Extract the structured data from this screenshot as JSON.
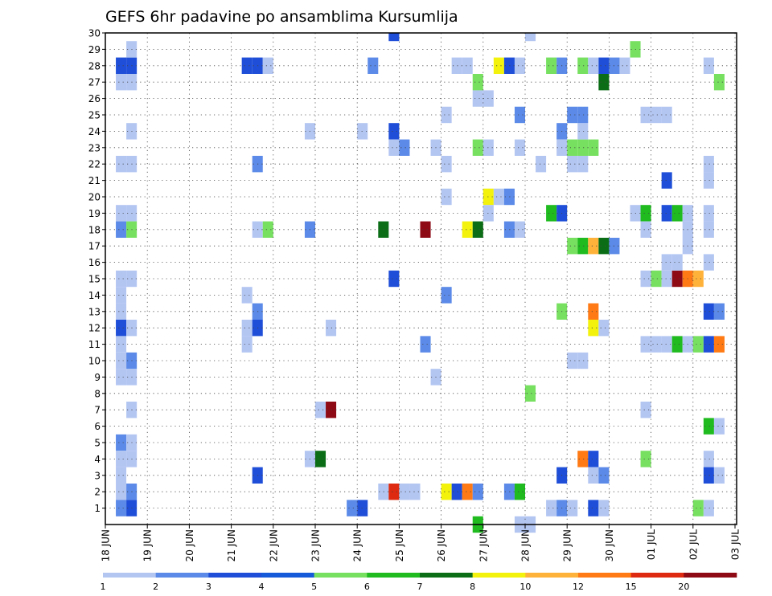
{
  "chart_data": {
    "type": "heatmap",
    "title": "GEFS 6hr padavine po ansamblima Kursumlija",
    "xlabel": "",
    "ylabel": "",
    "x_tick_labels": [
      "18 JUN",
      "19 JUN",
      "20 JUN",
      "21 JUN",
      "22 JUN",
      "23 JUN",
      "24 JUN",
      "25 JUN",
      "26 JUN",
      "27 JUN",
      "28 JUN",
      "29 JUN",
      "30 JUN",
      "01 JUL",
      "02 JUL",
      "03 JUL"
    ],
    "y_tick_labels": [
      "1",
      "2",
      "3",
      "4",
      "5",
      "6",
      "7",
      "8",
      "9",
      "10",
      "11",
      "12",
      "13",
      "14",
      "15",
      "16",
      "17",
      "18",
      "19",
      "20",
      "21",
      "22",
      "23",
      "24",
      "25",
      "26",
      "27",
      "28",
      "29",
      "30"
    ],
    "y_range": [
      0,
      30
    ],
    "x_units": "days since 18 JUN (6-hourly steps)",
    "x_range": [
      0,
      15.1
    ],
    "grid": true,
    "legend_placement": "bottom",
    "colorbar": {
      "boundaries": [
        "1",
        "2",
        "3",
        "4",
        "5",
        "6",
        "7",
        "8",
        "10",
        "12",
        "15",
        "20"
      ],
      "colors": [
        "#b3c6f2",
        "#5b8ae8",
        "#1f4fd8",
        "#155ad8",
        "#77e060",
        "#1fbb1f",
        "#0b6e16",
        "#f2f20d",
        "#ffb23a",
        "#ff7a14",
        "#dd2a10",
        "#8e0a14"
      ]
    },
    "cells": [
      [
        0.25,
        28,
        2
      ],
      [
        0.5,
        28,
        2
      ],
      [
        0.25,
        27,
        0
      ],
      [
        0.5,
        27,
        0
      ],
      [
        0.5,
        29,
        0
      ],
      [
        0.5,
        24,
        0
      ],
      [
        0.25,
        22,
        0
      ],
      [
        0.5,
        22,
        0
      ],
      [
        0.25,
        19,
        0
      ],
      [
        0.5,
        19,
        0
      ],
      [
        0.25,
        18,
        1
      ],
      [
        0.5,
        18,
        4
      ],
      [
        0.25,
        15,
        0
      ],
      [
        0.5,
        15,
        0
      ],
      [
        0.25,
        14,
        0
      ],
      [
        0.25,
        13,
        0
      ],
      [
        0.25,
        12,
        2
      ],
      [
        0.5,
        12,
        0
      ],
      [
        0.25,
        10,
        0
      ],
      [
        0.5,
        10,
        1
      ],
      [
        0.25,
        11,
        0
      ],
      [
        0.25,
        9,
        0
      ],
      [
        0.5,
        9,
        0
      ],
      [
        0.5,
        7,
        0
      ],
      [
        0.25,
        5,
        1
      ],
      [
        0.5,
        5,
        0
      ],
      [
        0.25,
        4,
        0
      ],
      [
        0.5,
        4,
        0
      ],
      [
        0.25,
        3,
        0
      ],
      [
        0.25,
        2,
        0
      ],
      [
        0.5,
        2,
        1
      ],
      [
        0.25,
        1,
        1
      ],
      [
        0.5,
        1,
        2
      ],
      [
        3.25,
        28,
        2
      ],
      [
        3.5,
        28,
        2
      ],
      [
        3.75,
        28,
        0
      ],
      [
        3.25,
        14,
        0
      ],
      [
        3.25,
        12,
        0
      ],
      [
        3.25,
        11,
        0
      ],
      [
        3.5,
        13,
        1
      ],
      [
        3.5,
        12,
        2
      ],
      [
        3.5,
        22,
        1
      ],
      [
        3.5,
        18,
        0
      ],
      [
        3.75,
        18,
        4
      ],
      [
        3.5,
        3,
        2
      ],
      [
        4.75,
        24,
        0
      ],
      [
        4.75,
        18,
        1
      ],
      [
        4.75,
        4,
        0
      ],
      [
        5,
        4,
        6
      ],
      [
        5,
        7,
        0
      ],
      [
        5.25,
        7,
        11
      ],
      [
        5.25,
        12,
        0
      ],
      [
        5.75,
        1,
        1
      ],
      [
        6,
        1,
        2
      ],
      [
        6,
        24,
        0
      ],
      [
        6.25,
        28,
        1
      ],
      [
        6.5,
        18,
        6
      ],
      [
        6.75,
        30,
        2
      ],
      [
        6.75,
        24,
        2
      ],
      [
        6.75,
        23,
        0
      ],
      [
        7,
        23,
        1
      ],
      [
        6.75,
        15,
        2
      ],
      [
        6.5,
        2,
        0
      ],
      [
        6.75,
        2,
        10
      ],
      [
        7,
        2,
        0
      ],
      [
        7.25,
        2,
        0
      ],
      [
        7.5,
        11,
        1
      ],
      [
        7.5,
        18,
        11
      ],
      [
        7.75,
        23,
        0
      ],
      [
        7.75,
        9,
        0
      ],
      [
        8,
        25,
        0
      ],
      [
        8,
        22,
        0
      ],
      [
        8,
        14,
        1
      ],
      [
        8,
        20,
        0
      ],
      [
        8,
        2,
        7
      ],
      [
        8.25,
        2,
        2
      ],
      [
        8.5,
        2,
        9
      ],
      [
        8.75,
        2,
        1
      ],
      [
        8.25,
        28,
        0
      ],
      [
        8.5,
        28,
        0
      ],
      [
        8.5,
        18,
        7
      ],
      [
        8.75,
        18,
        6
      ],
      [
        8.75,
        26,
        0
      ],
      [
        9,
        26,
        0
      ],
      [
        8.75,
        27,
        4
      ],
      [
        8.75,
        23,
        4
      ],
      [
        9,
        23,
        0
      ],
      [
        9,
        20,
        7
      ],
      [
        9.25,
        20,
        0
      ],
      [
        9.5,
        20,
        1
      ],
      [
        9,
        19,
        0
      ],
      [
        9.25,
        28,
        7
      ],
      [
        9.5,
        28,
        2
      ],
      [
        9.75,
        28,
        0
      ],
      [
        9.5,
        18,
        1
      ],
      [
        9.75,
        18,
        0
      ],
      [
        9.5,
        2,
        1
      ],
      [
        9.75,
        2,
        5
      ],
      [
        9.75,
        25,
        1
      ],
      [
        9.75,
        23,
        0
      ],
      [
        8.75,
        0,
        5
      ],
      [
        9.75,
        0,
        0
      ],
      [
        10,
        0,
        0
      ],
      [
        10,
        30,
        0
      ],
      [
        10,
        8,
        4
      ],
      [
        10.25,
        22,
        0
      ],
      [
        10.5,
        28,
        4
      ],
      [
        10.75,
        28,
        1
      ],
      [
        10.5,
        19,
        5
      ],
      [
        10.75,
        19,
        2
      ],
      [
        10.75,
        24,
        1
      ],
      [
        10.75,
        23,
        0
      ],
      [
        11,
        23,
        4
      ],
      [
        11.25,
        23,
        4
      ],
      [
        11.5,
        23,
        4
      ],
      [
        11.25,
        24,
        0
      ],
      [
        11,
        25,
        1
      ],
      [
        11.25,
        25,
        1
      ],
      [
        11,
        22,
        0
      ],
      [
        11.25,
        22,
        0
      ],
      [
        11,
        17,
        4
      ],
      [
        11.25,
        17,
        5
      ],
      [
        11.5,
        17,
        8
      ],
      [
        11.75,
        17,
        6
      ],
      [
        12,
        17,
        1
      ],
      [
        10.75,
        13,
        4
      ],
      [
        10.5,
        1,
        0
      ],
      [
        10.75,
        1,
        1
      ],
      [
        11,
        1,
        0
      ],
      [
        11,
        10,
        0
      ],
      [
        11.25,
        10,
        0
      ],
      [
        10.75,
        3,
        2
      ],
      [
        11.25,
        4,
        9
      ],
      [
        11.5,
        4,
        2
      ],
      [
        11.5,
        13,
        9
      ],
      [
        11.5,
        12,
        7
      ],
      [
        11.75,
        12,
        0
      ],
      [
        11.5,
        3,
        0
      ],
      [
        11.75,
        3,
        1
      ],
      [
        11.5,
        1,
        2
      ],
      [
        11.75,
        1,
        0
      ],
      [
        11.25,
        28,
        4
      ],
      [
        11.5,
        28,
        0
      ],
      [
        11.75,
        28,
        2
      ],
      [
        12,
        28,
        1
      ],
      [
        11.75,
        27,
        6
      ],
      [
        12.25,
        28,
        0
      ],
      [
        12.5,
        29,
        4
      ],
      [
        12.5,
        19,
        0
      ],
      [
        12.75,
        19,
        5
      ],
      [
        12.75,
        18,
        0
      ],
      [
        13.25,
        19,
        2
      ],
      [
        13.5,
        19,
        5
      ],
      [
        13.75,
        19,
        0
      ],
      [
        12.75,
        15,
        0
      ],
      [
        13,
        15,
        4
      ],
      [
        13.25,
        15,
        0
      ],
      [
        13.5,
        15,
        11
      ],
      [
        13.75,
        15,
        9
      ],
      [
        14,
        15,
        8
      ],
      [
        13.25,
        16,
        0
      ],
      [
        13.5,
        16,
        0
      ],
      [
        14.25,
        16,
        0
      ],
      [
        12.75,
        25,
        0
      ],
      [
        13,
        25,
        0
      ],
      [
        13.25,
        25,
        0
      ],
      [
        13.25,
        21,
        2
      ],
      [
        12.75,
        11,
        0
      ],
      [
        13,
        11,
        0
      ],
      [
        13.25,
        11,
        0
      ],
      [
        13.5,
        11,
        5
      ],
      [
        13.75,
        11,
        0
      ],
      [
        14,
        11,
        4
      ],
      [
        14.25,
        11,
        2
      ],
      [
        14.5,
        11,
        9
      ],
      [
        12.75,
        4,
        4
      ],
      [
        12.75,
        7,
        0
      ],
      [
        14,
        1,
        4
      ],
      [
        14.25,
        1,
        0
      ],
      [
        13.75,
        18,
        0
      ],
      [
        14.25,
        18,
        0
      ],
      [
        13.75,
        17,
        0
      ],
      [
        14.25,
        28,
        0
      ],
      [
        14.25,
        22,
        0
      ],
      [
        14.25,
        21,
        0
      ],
      [
        14.25,
        19,
        0
      ],
      [
        14.5,
        27,
        4
      ],
      [
        14.25,
        13,
        2
      ],
      [
        14.5,
        13,
        1
      ],
      [
        14.25,
        6,
        5
      ],
      [
        14.5,
        6,
        0
      ],
      [
        14.25,
        4,
        0
      ],
      [
        14.25,
        3,
        2
      ],
      [
        14.5,
        3,
        0
      ]
    ]
  }
}
